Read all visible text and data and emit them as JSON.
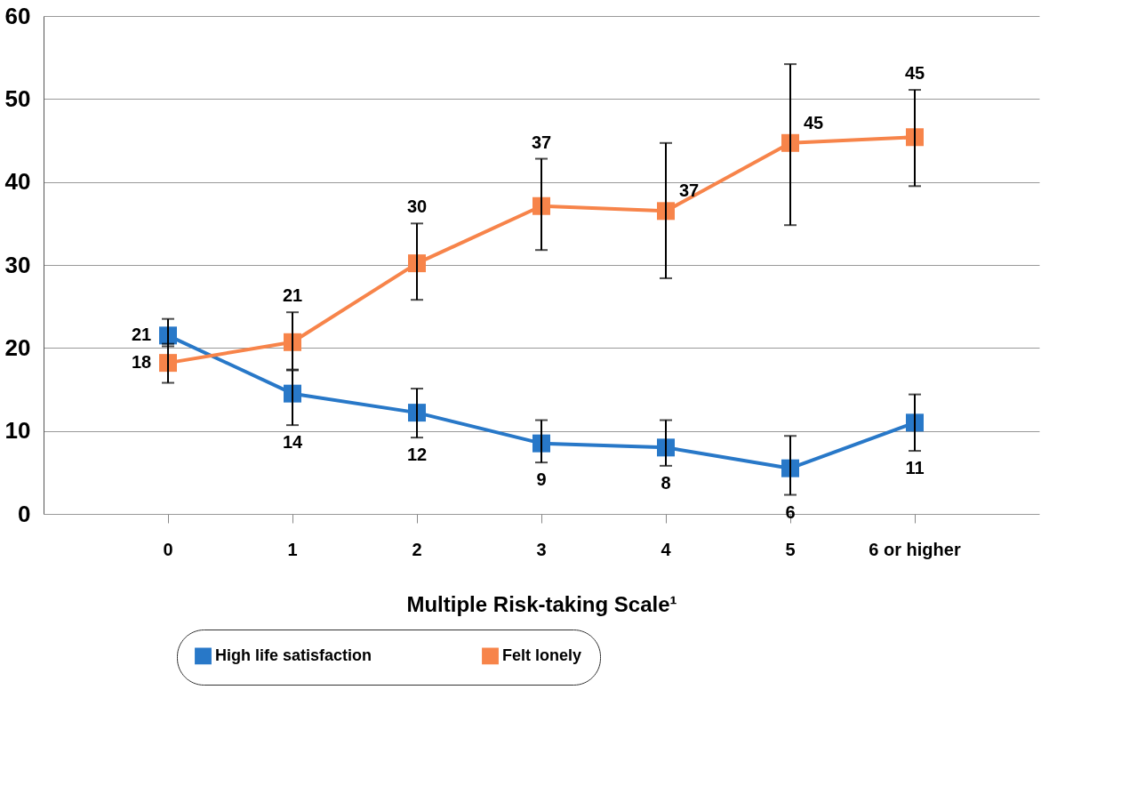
{
  "chart_data": {
    "type": "line",
    "xlabel": "Multiple Risk-taking Scale¹",
    "categories": [
      "0",
      "1",
      "2",
      "3",
      "4",
      "5",
      "6 or higher"
    ],
    "series": [
      {
        "name": "High life satisfaction",
        "color": "#2878c8",
        "values": [
          21.5,
          14.5,
          12.2,
          8.5,
          8.0,
          5.5,
          11.0
        ],
        "errors": [
          [
            20.2,
            23.5
          ],
          [
            10.7,
            17.3
          ],
          [
            9.2,
            15.1
          ],
          [
            6.2,
            11.3
          ],
          [
            5.8,
            11.3
          ],
          [
            2.3,
            9.4
          ],
          [
            7.6,
            14.4
          ]
        ],
        "value_labels": [
          "21",
          "14",
          "12",
          "9",
          "8",
          "6",
          "11"
        ]
      },
      {
        "name": "Felt lonely",
        "color": "#f7844a",
        "values": [
          18.2,
          20.7,
          30.2,
          37.1,
          36.5,
          44.7,
          45.4
        ],
        "errors": [
          [
            15.8,
            20.5
          ],
          [
            17.4,
            24.3
          ],
          [
            25.8,
            35.0
          ],
          [
            31.8,
            42.8
          ],
          [
            28.4,
            44.7
          ],
          [
            34.8,
            54.2
          ],
          [
            39.5,
            51.1
          ]
        ],
        "value_labels": [
          "18",
          "21",
          "30",
          "37",
          "37",
          "45",
          "45"
        ]
      }
    ],
    "ylim": [
      0,
      60
    ],
    "yticks": [
      0,
      10,
      20,
      30,
      40,
      50,
      60
    ],
    "grid": "y",
    "legend": "bottom",
    "marker": "square",
    "line_style": "solid"
  }
}
